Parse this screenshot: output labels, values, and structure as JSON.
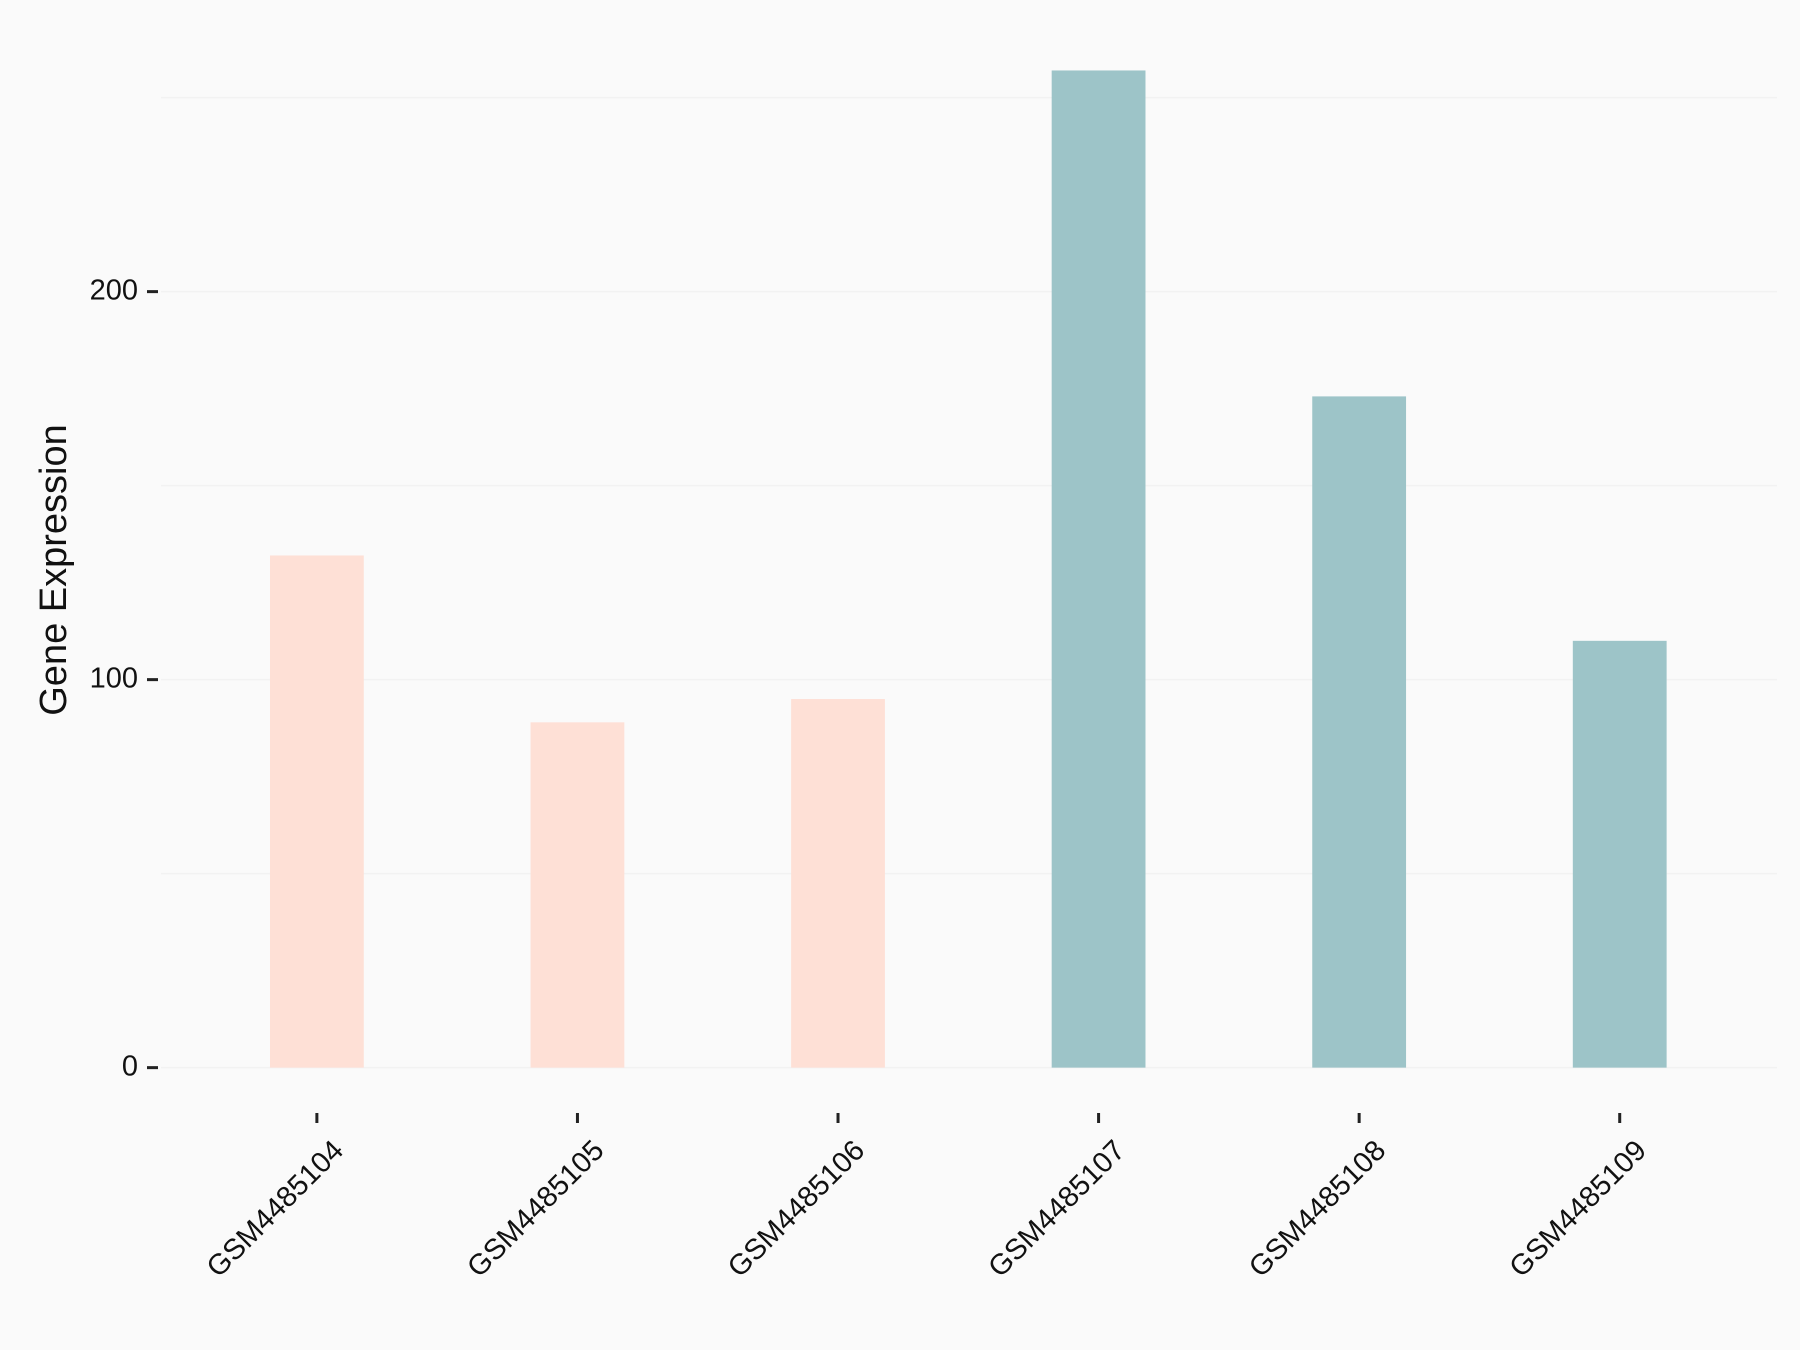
{
  "chart_data": {
    "type": "bar",
    "y_label": "Gene Expression",
    "categories": [
      "GSM4485104",
      "GSM4485105",
      "GSM4485106",
      "GSM4485107",
      "GSM4485108",
      "GSM4485109"
    ],
    "values": [
      132,
      89,
      95,
      257,
      173,
      110
    ],
    "colors": [
      "#FEE0D6",
      "#FEE0D6",
      "#FEE0D6",
      "#9DC4C8",
      "#9DC4C8",
      "#9DC4C8"
    ],
    "ylim": [
      -12.8,
      269.8
    ],
    "yticks": [
      0,
      100,
      200
    ],
    "minor_yticks": [
      50,
      150,
      250
    ],
    "grid": true
  }
}
